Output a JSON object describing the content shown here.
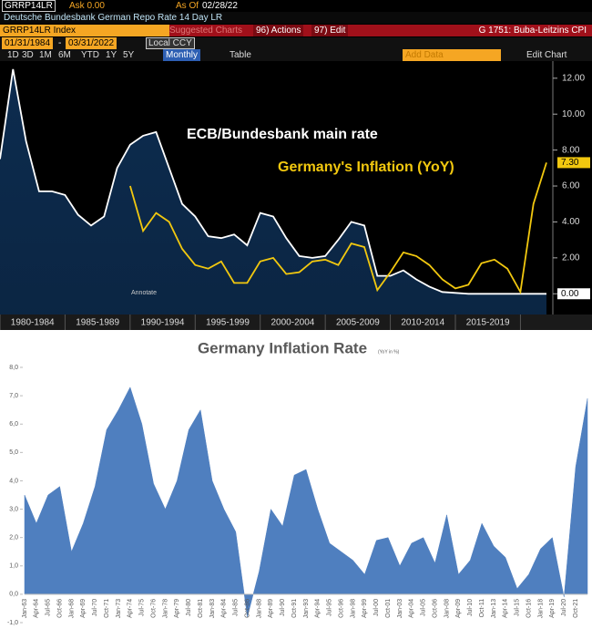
{
  "toolbar": {
    "ticker": "GRRP14LR",
    "ask": "Ask 0.00",
    "as_of_label": "As Of",
    "as_of_date": "02/28/22",
    "description": "Deutsche Bundesbank German Repo Rate 14 Day LR",
    "security": "GRRP14LR Index",
    "suggested": "Suggested Charts",
    "actions": "96) Actions",
    "edit": "97) Edit",
    "chart_name": "G 1751: Buba-Leitzins CPI",
    "start_date": "01/31/1984",
    "dash": "-",
    "end_date": "03/31/2022",
    "currency": "Local CCY",
    "ranges": [
      "1D",
      "3D",
      "1M",
      "6M",
      "YTD",
      "1Y",
      "5Y"
    ],
    "frequency": "Monthly",
    "table": "Table",
    "add_data": "Add Data",
    "edit_chart": "Edit Chart",
    "annotate": "Annotate"
  },
  "chart_data": [
    {
      "type": "line",
      "categories": [
        null,
        null,
        "1980-1984",
        null,
        null,
        null,
        null,
        "1985-1989",
        null,
        null,
        null,
        null,
        "1990-1994",
        null,
        null,
        null,
        null,
        "1995-1999",
        null,
        null,
        null,
        null,
        "2000-2004",
        null,
        null,
        null,
        null,
        "2005-2009",
        null,
        null,
        null,
        null,
        "2010-2014",
        null,
        null,
        null,
        null,
        "2015-2019",
        null,
        null,
        null,
        null,
        null
      ],
      "series": [
        {
          "name": "ECB/Bundesbank main rate",
          "color": "#ffffff",
          "fill": "#0d2c4f",
          "end_label": "0.00",
          "values": [
            7.5,
            12.5,
            8.5,
            5.7,
            5.7,
            5.5,
            4.4,
            3.8,
            4.3,
            7.0,
            8.3,
            8.8,
            9.0,
            7.0,
            5.0,
            4.3,
            3.2,
            3.1,
            3.3,
            2.7,
            4.5,
            4.3,
            3.1,
            2.1,
            2.0,
            2.1,
            3.0,
            4.0,
            3.8,
            1.0,
            1.0,
            1.3,
            0.8,
            0.4,
            0.1,
            0.05,
            0,
            0,
            0,
            0,
            0,
            0,
            0
          ]
        },
        {
          "name": "Germany's Inflation (YoY)",
          "color": "#f2c80f",
          "end_label": "7.30",
          "values": [
            null,
            null,
            null,
            null,
            null,
            null,
            null,
            null,
            null,
            null,
            6.0,
            3.5,
            4.5,
            4.0,
            2.5,
            1.6,
            1.4,
            1.8,
            0.6,
            0.6,
            1.8,
            2.0,
            1.1,
            1.2,
            1.8,
            1.9,
            1.6,
            2.8,
            2.6,
            0.2,
            1.2,
            2.3,
            2.1,
            1.6,
            0.8,
            0.3,
            0.5,
            1.7,
            1.9,
            1.4,
            0.1,
            5.0,
            7.3
          ]
        }
      ],
      "ylim": [
        -0.9,
        12.7
      ],
      "yticks": [
        {
          "value": 0,
          "label": "0.00"
        },
        {
          "value": 2,
          "label": "2.00"
        },
        {
          "value": 4,
          "label": "4.00"
        },
        {
          "value": 6,
          "label": "6.00"
        },
        {
          "value": 8,
          "label": "8.00"
        },
        {
          "value": 10,
          "label": "10.00"
        },
        {
          "value": 12,
          "label": "12.00"
        }
      ]
    },
    {
      "type": "area",
      "title": "Germany Inflation Rate",
      "subtitle": "(YoY in %)",
      "color": "#4f7fbf",
      "categories": [
        "Jan-63",
        "Apr-64",
        "Jul-65",
        "Oct-66",
        "Jan-68",
        "Apr-69",
        "Jul-70",
        "Oct-71",
        "Jan-73",
        "Apr-74",
        "Jul-75",
        "Oct-76",
        "Jan-78",
        "Apr-79",
        "Jul-80",
        "Oct-81",
        "Jan-83",
        "Apr-84",
        "Jul-85",
        "Oct-86",
        "Jan-88",
        "Apr-89",
        "Jul-90",
        "Oct-91",
        "Jan-93",
        "Apr-94",
        "Jul-95",
        "Oct-96",
        "Jan-98",
        "Apr-99",
        "Jul-00",
        "Oct-01",
        "Jan-03",
        "Apr-04",
        "Jul-05",
        "Oct-06",
        "Jan-08",
        "Apr-09",
        "Jul-10",
        "Oct-11",
        "Jan-13",
        "Apr-14",
        "Jul-15",
        "Oct-16",
        "Jan-18",
        "Apr-19",
        "Jul-20",
        "Oct-21",
        null
      ],
      "values": [
        3.5,
        2.5,
        3.5,
        3.8,
        1.5,
        2.5,
        3.8,
        5.8,
        6.5,
        7.3,
        6.0,
        3.9,
        3.0,
        4.0,
        5.8,
        6.5,
        4.0,
        3.0,
        2.2,
        -0.8,
        0.8,
        3.0,
        2.4,
        4.2,
        4.4,
        3.0,
        1.8,
        1.5,
        1.2,
        0.7,
        1.9,
        2.0,
        1.0,
        1.8,
        2.0,
        1.1,
        2.8,
        0.7,
        1.2,
        2.5,
        1.7,
        1.3,
        0.2,
        0.7,
        1.6,
        2.0,
        -0.1,
        4.5,
        6.9
      ],
      "ylim": [
        -1,
        8
      ],
      "yticks": [
        {
          "value": -1,
          "label": "-1,0"
        },
        {
          "value": 0,
          "label": "0,0"
        },
        {
          "value": 1,
          "label": "1,0"
        },
        {
          "value": 2,
          "label": "2,0"
        },
        {
          "value": 3,
          "label": "3,0"
        },
        {
          "value": 4,
          "label": "4,0"
        },
        {
          "value": 5,
          "label": "5,0"
        },
        {
          "value": 6,
          "label": "6,0"
        },
        {
          "value": 7,
          "label": "7,0"
        },
        {
          "value": 8,
          "label": "8,0"
        }
      ]
    }
  ]
}
